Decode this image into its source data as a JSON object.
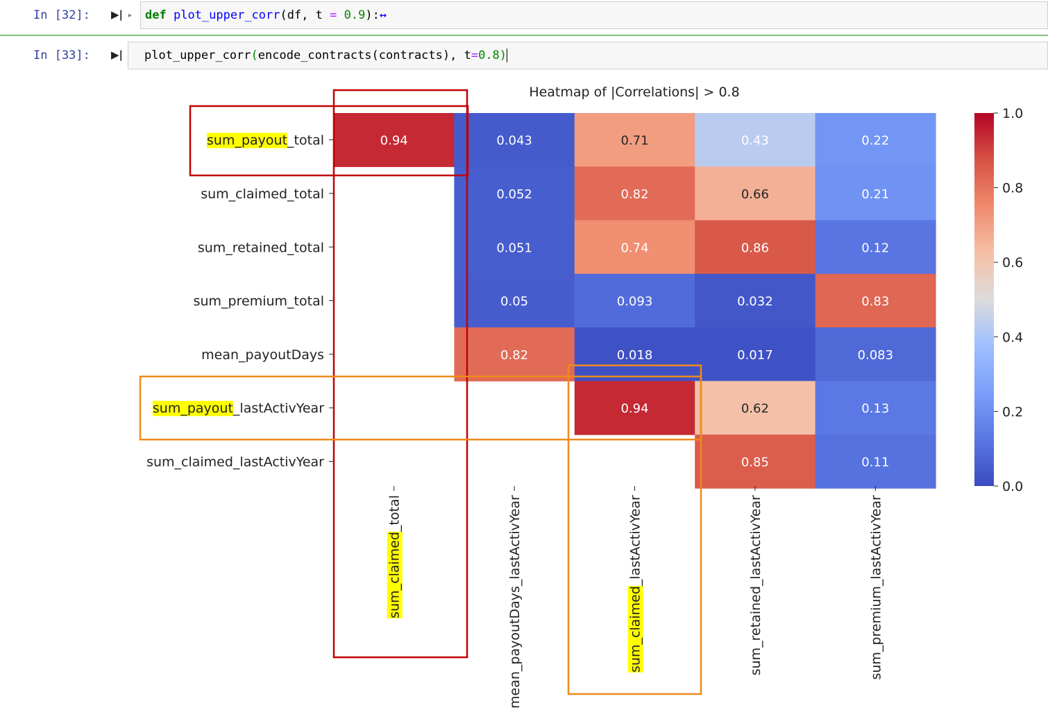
{
  "cells": [
    {
      "prompt": "In [32]:",
      "code": {
        "kw": "def",
        "fn": "plot_upper_corr",
        "args_a": "(df, t ",
        "eq": "=",
        "num": "0.9",
        "args_b": "):",
        "ellipsis": "↔"
      }
    },
    {
      "prompt": "In [33]:",
      "code": {
        "pre": "plot_upper_corr",
        "paren_open": "(",
        "call": "encode_contracts(contracts), t",
        "eq": "=",
        "num": "0.8",
        "paren_close": ")"
      }
    }
  ],
  "icons": {
    "run": "run-cell-icon",
    "collapse": "collapse-arrow-icon"
  },
  "chart_data": {
    "type": "heatmap",
    "title": "Heatmap of |Correlations| > 0.8",
    "row_labels": [
      "sum_payout_total",
      "sum_claimed_total",
      "sum_retained_total",
      "sum_premium_total",
      "mean_payoutDays",
      "sum_payout_lastActivYear",
      "sum_claimed_lastActivYear"
    ],
    "col_labels": [
      "sum_claimed_total",
      "mean_payoutDays_lastActivYear",
      "sum_claimed_lastActivYear",
      "sum_retained_lastActivYear",
      "sum_premium_lastActivYear"
    ],
    "values": [
      [
        0.94,
        0.043,
        0.71,
        0.43,
        0.22
      ],
      [
        null,
        0.052,
        0.82,
        0.66,
        0.21
      ],
      [
        null,
        0.051,
        0.74,
        0.86,
        0.12
      ],
      [
        null,
        0.05,
        0.093,
        0.032,
        0.83
      ],
      [
        null,
        0.82,
        0.018,
        0.017,
        0.083
      ],
      [
        null,
        null,
        0.94,
        0.62,
        0.13
      ],
      [
        null,
        null,
        null,
        0.85,
        0.11
      ]
    ],
    "labels": [
      [
        "0.94",
        "0.043",
        "0.71",
        "0.43",
        "0.22"
      ],
      [
        null,
        "0.052",
        "0.82",
        "0.66",
        "0.21"
      ],
      [
        null,
        "0.051",
        "0.74",
        "0.86",
        "0.12"
      ],
      [
        null,
        "0.05",
        "0.093",
        "0.032",
        "0.83"
      ],
      [
        null,
        "0.82",
        "0.018",
        "0.017",
        "0.083"
      ],
      [
        null,
        null,
        "0.94",
        "0.62",
        "0.13"
      ],
      [
        null,
        null,
        null,
        "0.85",
        "0.11"
      ]
    ],
    "colormap": "coolwarm",
    "vmin": 0.0,
    "vmax": 1.0,
    "colorbar_ticks": [
      "0.0",
      "0.2",
      "0.4",
      "0.6",
      "0.8",
      "1.0"
    ],
    "row_highlights": [
      {
        "row": 0,
        "text": "sum_payout"
      },
      {
        "row": 5,
        "text": "sum_payout"
      }
    ],
    "col_highlights": [
      {
        "col": 0,
        "text": "sum_claimed"
      },
      {
        "col": 2,
        "text": "sum_claimed"
      }
    ],
    "annotation_colors": {
      "red": "#c00000",
      "orange": "#ee8a1b",
      "highlight": "#ffff00"
    }
  }
}
